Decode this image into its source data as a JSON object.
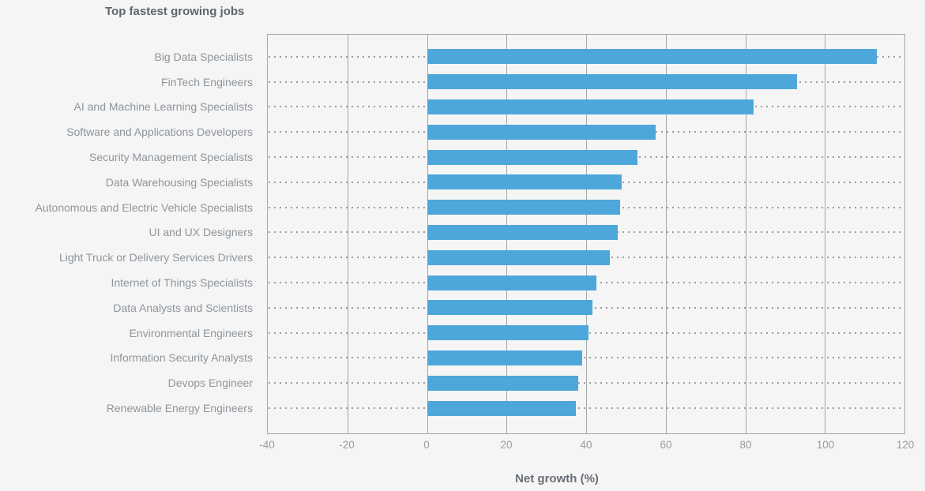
{
  "colors": {
    "background": "#f5f5f6",
    "bar": "#4da7db",
    "grid_line": "#a6a6a6",
    "dot_color": "#9c9c9c",
    "title_text": "#5c666e",
    "label_text": "#8e959a",
    "tick_text": "#9b9b9b",
    "axis_title_text": "#696f76"
  },
  "chart_data": {
    "type": "bar",
    "orientation": "horizontal",
    "title": "Top fastest growing jobs",
    "xlabel": "Net growth (%)",
    "ylabel": "",
    "xlim": [
      -40,
      120
    ],
    "xticks": [
      -40,
      -20,
      0,
      20,
      40,
      60,
      80,
      100,
      120
    ],
    "grid": true,
    "legend": false,
    "bar_baseline": 0,
    "categories": [
      "Big Data Specialists",
      "FinTech Engineers",
      "AI and Machine Learning Specialists",
      "Software and Applications Developers",
      "Security Management Specialists",
      "Data Warehousing Specialists",
      "Autonomous and Electric Vehicle Specialists",
      "UI and UX Designers",
      "Light Truck or Delivery Services Drivers",
      "Internet of Things Specialists",
      "Data Analysts and Scientists",
      "Environmental Engineers",
      "Information Security Analysts",
      "Devops Engineer",
      "Renewable Energy Engineers"
    ],
    "values": [
      113,
      93,
      82,
      57.5,
      53,
      49,
      48.5,
      48,
      46,
      42.5,
      41.5,
      40.5,
      39,
      38,
      37.5
    ]
  }
}
